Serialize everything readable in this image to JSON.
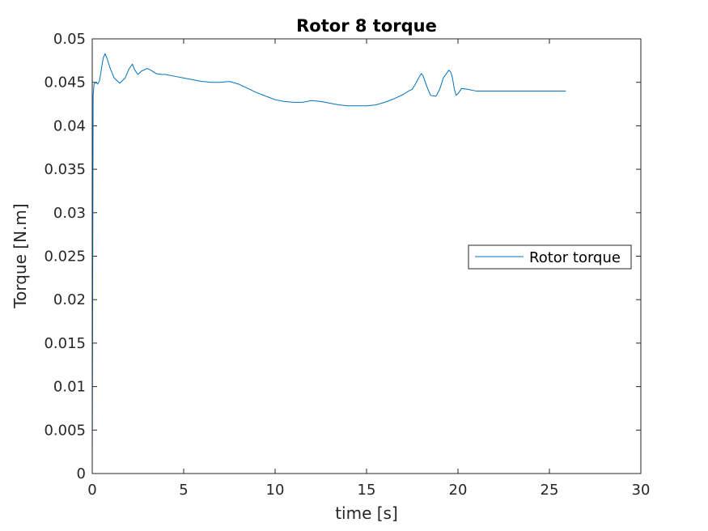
{
  "chart_data": {
    "type": "line",
    "title": "Rotor 8 torque",
    "xlabel": "time [s]",
    "ylabel": "Torque [N.m]",
    "xlim": [
      0,
      30
    ],
    "ylim": [
      0,
      0.05
    ],
    "x_ticks": [
      "0",
      "5",
      "10",
      "15",
      "20",
      "25",
      "30"
    ],
    "y_ticks": [
      "0",
      "0.005",
      "0.01",
      "0.015",
      "0.02",
      "0.025",
      "0.03",
      "0.035",
      "0.04",
      "0.045",
      "0.05"
    ],
    "grid": false,
    "legend_position": "right",
    "series": [
      {
        "name": "Rotor torque",
        "color": "#0072BD",
        "x": [
          0,
          0.05,
          0.1,
          0.2,
          0.3,
          0.4,
          0.5,
          0.6,
          0.7,
          0.8,
          1.0,
          1.2,
          1.5,
          1.8,
          2.0,
          2.2,
          2.3,
          2.5,
          2.7,
          3.0,
          3.2,
          3.5,
          3.8,
          4.0,
          4.5,
          5.0,
          5.5,
          6.0,
          6.5,
          7.0,
          7.5,
          8.0,
          8.5,
          9.0,
          9.5,
          10.0,
          10.5,
          11.0,
          11.5,
          12.0,
          12.5,
          13.0,
          13.5,
          14.0,
          14.5,
          15.0,
          15.5,
          16.0,
          16.5,
          17.0,
          17.3,
          17.5,
          17.7,
          17.9,
          18.0,
          18.1,
          18.3,
          18.5,
          18.8,
          19.0,
          19.2,
          19.5,
          19.6,
          19.7,
          19.8,
          19.9,
          20.0,
          20.2,
          20.5,
          21.0,
          22.0,
          23.0,
          24.0,
          25.0,
          25.9
        ],
        "y": [
          0,
          0.0435,
          0.0448,
          0.045,
          0.0448,
          0.0452,
          0.0465,
          0.0478,
          0.0483,
          0.0478,
          0.0465,
          0.0455,
          0.0449,
          0.0455,
          0.0465,
          0.0471,
          0.0465,
          0.0459,
          0.0463,
          0.0466,
          0.0464,
          0.046,
          0.0459,
          0.0459,
          0.0457,
          0.0455,
          0.0453,
          0.0451,
          0.045,
          0.045,
          0.0451,
          0.0448,
          0.0443,
          0.0438,
          0.0434,
          0.043,
          0.0428,
          0.0427,
          0.0427,
          0.0429,
          0.0428,
          0.0426,
          0.0424,
          0.0423,
          0.0423,
          0.0423,
          0.0424,
          0.0427,
          0.0431,
          0.0436,
          0.044,
          0.0442,
          0.0449,
          0.0457,
          0.046,
          0.0457,
          0.0445,
          0.0435,
          0.0434,
          0.0442,
          0.0455,
          0.0464,
          0.0462,
          0.0455,
          0.0442,
          0.0435,
          0.0437,
          0.0443,
          0.0442,
          0.044,
          0.044,
          0.044,
          0.044,
          0.044,
          0.044
        ]
      }
    ]
  }
}
